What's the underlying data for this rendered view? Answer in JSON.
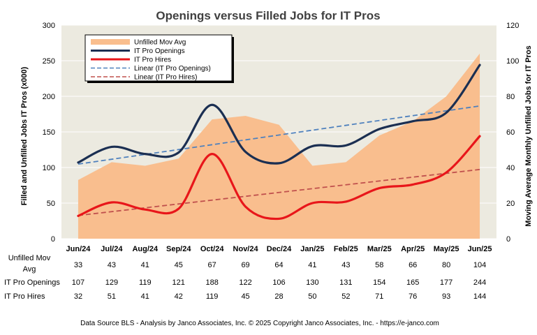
{
  "chart_data": {
    "type": "combo-area-line",
    "title": "Openings versus Filled Jobs for IT Pros",
    "categories": [
      "Jun/24",
      "Jul/24",
      "Aug/24",
      "Sep/24",
      "Oct/24",
      "Nov/24",
      "Dec/24",
      "Jan/25",
      "Feb/25",
      "Mar/25",
      "Apr/25",
      "May/25",
      "Jun/25"
    ],
    "ylabel_left": "Filled and Unfilled Jobs IT Pros (x000)",
    "ylabel_right": "Moving Average Monthly Unfilled Jobs for IT Pros",
    "ylim_left": [
      0,
      300
    ],
    "ylim_right": [
      0,
      120
    ],
    "yticks_left": [
      0,
      50,
      100,
      150,
      200,
      250,
      300
    ],
    "yticks_right": [
      0,
      20,
      40,
      60,
      80,
      100,
      120
    ],
    "series": [
      {
        "name": "Unfilled Mov Avg",
        "table_label": [
          "Unfilled Mov",
          "Avg"
        ],
        "axis": "right",
        "kind": "area",
        "color": "#F9BE8E",
        "values": [
          33,
          43,
          41,
          45,
          67,
          69,
          64,
          41,
          43,
          58,
          66,
          80,
          104
        ]
      },
      {
        "name": "IT Pro Openings",
        "table_label": [
          "IT Pro Openings"
        ],
        "axis": "left",
        "kind": "line",
        "color": "#1B2F52",
        "values": [
          107,
          129,
          119,
          121,
          188,
          122,
          106,
          130,
          131,
          154,
          165,
          177,
          244
        ]
      },
      {
        "name": "IT Pro Hires",
        "table_label": [
          "IT Pro Hires"
        ],
        "axis": "left",
        "kind": "line",
        "color": "#E8161A",
        "values": [
          32,
          51,
          41,
          42,
          119,
          45,
          28,
          50,
          52,
          71,
          76,
          93,
          144
        ]
      }
    ],
    "trendlines": [
      {
        "name": "Linear (IT Pro Openings)",
        "color": "#4F81BD",
        "dash": true
      },
      {
        "name": "Linear (IT Pro Hires)",
        "color": "#C0504D",
        "dash": true
      }
    ],
    "legend_position": "top-left",
    "footer": "Data Source BLS - Analysis by Janco Associates, Inc. © 2025 Copyright Janco Associates, Inc. - https://e-janco.com",
    "colors": {
      "plot_bg": "#ECEAE0",
      "grid": "#FFFFFF"
    }
  }
}
